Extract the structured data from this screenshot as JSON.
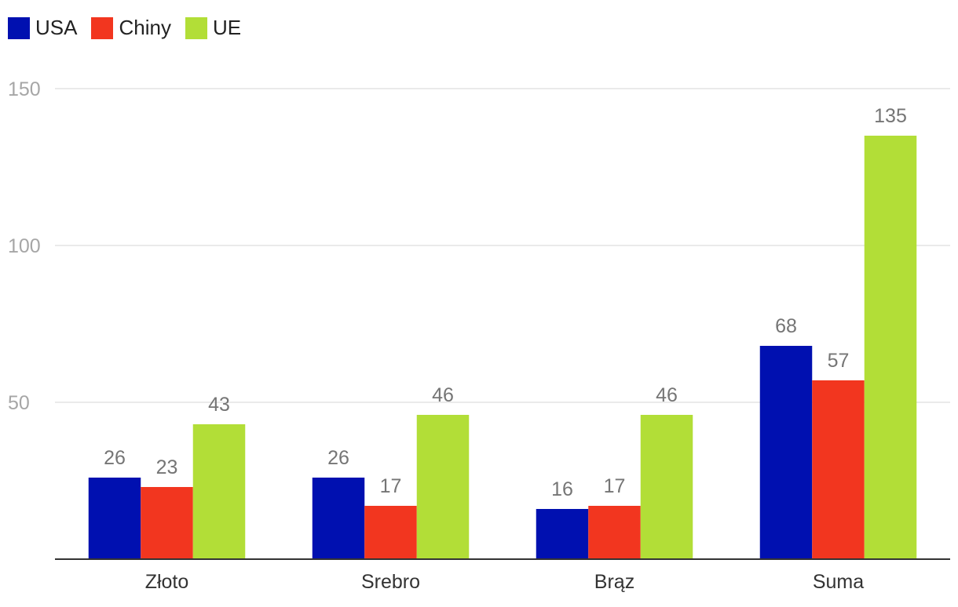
{
  "chart_data": {
    "type": "bar",
    "title": "",
    "xlabel": "",
    "ylabel": "",
    "categories": [
      "Złoto",
      "Srebro",
      "Brąz",
      "Suma"
    ],
    "series": [
      {
        "name": "USA",
        "color": "#0010b0",
        "values": [
          26,
          26,
          16,
          68
        ]
      },
      {
        "name": "Chiny",
        "color": "#f2361f",
        "values": [
          23,
          17,
          17,
          57
        ]
      },
      {
        "name": "UE",
        "color": "#b2de37",
        "values": [
          43,
          46,
          46,
          135
        ]
      }
    ],
    "yticks": [
      50,
      100,
      150
    ],
    "ylim": [
      0,
      150
    ],
    "grid": true,
    "legend": "top-left"
  }
}
